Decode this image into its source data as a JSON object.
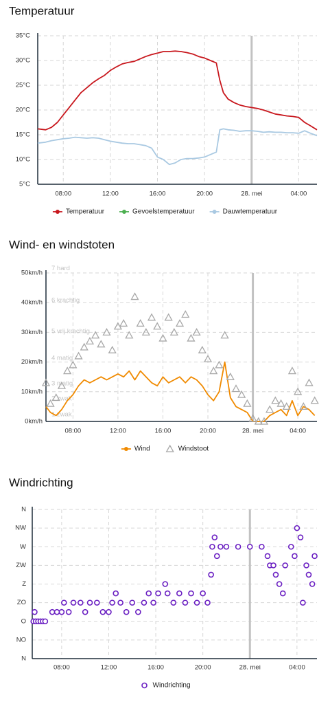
{
  "chart_data": [
    {
      "type": "line",
      "title": "Temperatuur",
      "x": [
        5.83,
        6.5,
        7,
        7.5,
        8,
        8.5,
        9,
        9.5,
        10,
        10.5,
        11,
        11.5,
        12,
        12.5,
        13,
        13.5,
        14,
        14.5,
        15,
        15.5,
        16,
        16.5,
        17,
        17.5,
        18,
        18.5,
        19,
        19.5,
        20,
        20.5,
        21,
        21.3,
        21.6,
        22,
        22.5,
        23,
        23.5,
        24,
        24.5,
        25,
        25.5,
        26,
        26.5,
        27,
        27.5,
        28,
        28.5,
        29,
        29.55
      ],
      "series": [
        {
          "name": "Temperatuur",
          "color": "#c8171d",
          "values": [
            16.2,
            16,
            16.5,
            17.5,
            19,
            20.5,
            22,
            23.5,
            24.5,
            25.5,
            26.3,
            27,
            28,
            28.7,
            29.3,
            29.6,
            29.8,
            30.3,
            30.8,
            31.2,
            31.5,
            31.8,
            31.8,
            31.9,
            31.8,
            31.6,
            31.3,
            30.8,
            30.5,
            30,
            29.5,
            26,
            23.5,
            22.2,
            21.5,
            21,
            20.7,
            20.5,
            20.3,
            20,
            19.6,
            19.2,
            19,
            18.8,
            18.7,
            18.5,
            17.5,
            16.8,
            16
          ]
        },
        {
          "name": "Gevoelstemperatuur",
          "color": "#4caf50",
          "values": [
            null,
            null,
            null,
            null,
            null,
            null,
            null,
            null,
            null,
            null,
            null,
            null,
            null,
            null,
            null,
            null,
            null,
            null,
            null,
            null,
            null,
            null,
            null,
            null,
            null,
            null,
            null,
            null,
            null,
            null,
            null,
            null,
            null,
            null,
            null,
            null,
            null,
            null,
            null,
            null,
            null,
            null,
            null,
            null,
            null,
            null,
            null,
            null,
            null
          ]
        },
        {
          "name": "Dauwtemperatuur",
          "color": "#a9c9e2",
          "values": [
            13.3,
            13.5,
            13.8,
            14,
            14.2,
            14.3,
            14.5,
            14.4,
            14.3,
            14.4,
            14.3,
            14,
            13.7,
            13.5,
            13.3,
            13.2,
            13.2,
            13,
            12.8,
            12.3,
            10.5,
            10,
            9,
            9.3,
            10,
            10.2,
            10.2,
            10.3,
            10.5,
            11,
            11.5,
            16,
            16.2,
            16,
            15.9,
            15.7,
            15.8,
            15.8,
            15.7,
            15.5,
            15.6,
            15.5,
            15.5,
            15.4,
            15.4,
            15.3,
            15.8,
            15.3,
            14.8
          ]
        }
      ],
      "xlim": [
        5.83,
        29.55
      ],
      "xticks": [
        {
          "value": 8,
          "label": "08:00"
        },
        {
          "value": 12,
          "label": "12:00"
        },
        {
          "value": 16,
          "label": "16:00"
        },
        {
          "value": 20,
          "label": "20:00"
        },
        {
          "value": 24,
          "label": "28. mei"
        },
        {
          "value": 28,
          "label": "04:00"
        }
      ],
      "ylim": [
        5,
        35
      ],
      "yticks": [
        {
          "value": 5,
          "label": "5°C"
        },
        {
          "value": 10,
          "label": "10°C"
        },
        {
          "value": 15,
          "label": "15°C"
        },
        {
          "value": 20,
          "label": "20°C"
        },
        {
          "value": 25,
          "label": "25°C"
        },
        {
          "value": 30,
          "label": "30°C"
        },
        {
          "value": 35,
          "label": "35°C"
        }
      ],
      "vlines": [
        24
      ],
      "grid": true
    },
    {
      "type": "line",
      "title": "Wind- en windstoten",
      "x": [
        5.6,
        6,
        6.5,
        7,
        7.5,
        8,
        8.5,
        9,
        9.5,
        10,
        10.5,
        11,
        11.5,
        12,
        12.5,
        13,
        13.5,
        14,
        14.5,
        15,
        15.5,
        16,
        16.5,
        17,
        17.5,
        18,
        18.5,
        19,
        19.5,
        20,
        20.5,
        21,
        21.5,
        22,
        22.5,
        23,
        23.5,
        24,
        24.5,
        25,
        25.5,
        26,
        26.5,
        27,
        27.5,
        28,
        28.5,
        29,
        29.5
      ],
      "series": [
        {
          "name": "Wind",
          "color": "#f08a00",
          "mode": "line",
          "values": [
            5,
            3,
            2,
            4,
            7,
            9,
            12,
            14,
            13,
            14,
            15,
            14,
            15,
            16,
            15,
            17,
            14,
            17,
            15,
            13,
            12,
            15,
            13,
            14,
            15,
            13,
            15,
            14,
            12,
            9,
            7,
            10,
            20,
            8,
            5,
            4,
            3,
            0,
            0,
            0,
            2,
            3,
            4,
            2,
            7,
            2,
            5,
            4,
            2
          ]
        },
        {
          "name": "Windstoot",
          "color": "#a8a8a8",
          "mode": "markers",
          "marker": "triangle",
          "values": [
            13,
            6,
            8,
            12,
            17,
            19,
            22,
            25,
            27,
            29,
            26,
            30,
            24,
            32,
            33,
            29,
            42,
            33,
            30,
            35,
            32,
            28,
            35,
            30,
            33,
            36,
            28,
            30,
            24,
            21,
            17,
            19,
            29,
            15,
            11,
            9,
            6,
            1,
            0,
            0,
            4,
            7,
            6,
            5,
            17,
            10,
            5,
            13,
            7
          ]
        }
      ],
      "annotations": [
        {
          "text": "7 hard",
          "y": 51.5
        },
        {
          "text": "6 krachtig",
          "y": 40.7
        },
        {
          "text": "5 vrij krachtig",
          "y": 30.3
        },
        {
          "text": "4 matig",
          "y": 21.3
        },
        {
          "text": "3 matig",
          "y": 12.7
        },
        {
          "text": "2 zwak",
          "y": 7.6
        },
        {
          "text": "1 zwak",
          "y": 2.3
        }
      ],
      "xlim": [
        5.6,
        29.7
      ],
      "xticks": [
        {
          "value": 8,
          "label": "08:00"
        },
        {
          "value": 12,
          "label": "12:00"
        },
        {
          "value": 16,
          "label": "16:00"
        },
        {
          "value": 20,
          "label": "20:00"
        },
        {
          "value": 24,
          "label": "28. mei"
        },
        {
          "value": 28,
          "label": "04:00"
        }
      ],
      "ylim": [
        0,
        50
      ],
      "yticks": [
        {
          "value": 0,
          "label": "0km/h"
        },
        {
          "value": 10,
          "label": "10km/h"
        },
        {
          "value": 20,
          "label": "20km/h"
        },
        {
          "value": 30,
          "label": "30km/h"
        },
        {
          "value": 40,
          "label": "40km/h"
        },
        {
          "value": 50,
          "label": "50km/h"
        }
      ],
      "vlines": [
        24
      ],
      "grid": true
    },
    {
      "type": "scatter",
      "title": "Windrichting",
      "x": [
        5.6,
        5.7,
        5.8,
        6,
        6.2,
        6.4,
        6.6,
        7.2,
        7.6,
        8,
        8.2,
        8.6,
        9,
        9.6,
        10,
        10.4,
        11,
        11.5,
        12,
        12.3,
        12.6,
        13,
        13.5,
        14,
        14.5,
        15,
        15.4,
        15.8,
        16.2,
        16.8,
        17,
        17.5,
        18,
        18.5,
        19,
        19.5,
        20,
        20.4,
        20.7,
        20.8,
        21,
        21.2,
        21.5,
        22,
        23,
        24,
        25,
        25.5,
        25.7,
        26,
        26.2,
        26.5,
        26.8,
        27,
        27.5,
        27.8,
        28,
        28.3,
        28.5,
        28.8,
        29,
        29.3,
        29.5
      ],
      "series": [
        {
          "name": "Windrichting",
          "color": "#6a1fc2",
          "marker": "circle",
          "values": [
            90,
            112.5,
            90,
            90,
            90,
            90,
            90,
            112.5,
            112.5,
            112.5,
            135,
            112.5,
            135,
            135,
            112.5,
            135,
            135,
            112.5,
            112.5,
            135,
            157.5,
            135,
            112.5,
            135,
            112.5,
            135,
            157.5,
            135,
            157.5,
            180,
            157.5,
            135,
            157.5,
            135,
            157.5,
            135,
            157.5,
            135,
            202.5,
            270,
            292.5,
            247.5,
            270,
            270,
            270,
            270,
            270,
            247.5,
            225,
            225,
            202.5,
            180,
            157.5,
            225,
            270,
            247.5,
            315,
            292.5,
            135,
            225,
            202.5,
            180,
            247.5
          ]
        }
      ],
      "xlim": [
        5.5,
        29.7
      ],
      "xticks": [
        {
          "value": 8,
          "label": "08:00"
        },
        {
          "value": 12,
          "label": "12:00"
        },
        {
          "value": 16,
          "label": "16:00"
        },
        {
          "value": 20,
          "label": "20:00"
        },
        {
          "value": 24,
          "label": "28. mei"
        },
        {
          "value": 28,
          "label": "04:00"
        }
      ],
      "ylim": [
        0,
        360
      ],
      "yticks": [
        {
          "value": 0,
          "label": "N"
        },
        {
          "value": 45,
          "label": "NO"
        },
        {
          "value": 90,
          "label": "O"
        },
        {
          "value": 135,
          "label": "ZO"
        },
        {
          "value": 180,
          "label": "Z"
        },
        {
          "value": 225,
          "label": "ZW"
        },
        {
          "value": 270,
          "label": "W"
        },
        {
          "value": 315,
          "label": "NW"
        },
        {
          "value": 360,
          "label": "N"
        }
      ],
      "vlines": [
        24
      ],
      "grid": true
    }
  ]
}
